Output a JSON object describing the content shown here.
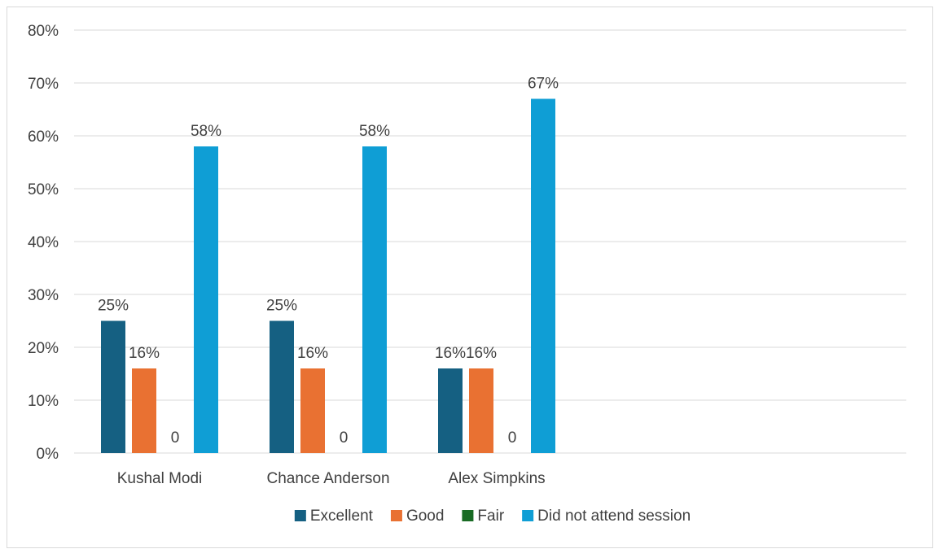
{
  "chart_data": {
    "type": "bar",
    "title": "",
    "xlabel": "",
    "ylabel": "",
    "categories": [
      "Kushal Modi",
      "Chance Anderson",
      "Alex Simpkins"
    ],
    "series": [
      {
        "name": "Excellent",
        "color": "#156082",
        "values": [
          25,
          25,
          16
        ],
        "labels": [
          "25%",
          "25%",
          "16%"
        ]
      },
      {
        "name": "Good",
        "color": "#e97132",
        "values": [
          16,
          16,
          16
        ],
        "labels": [
          "16%",
          "16%",
          "16%"
        ]
      },
      {
        "name": "Fair",
        "color": "#196b24",
        "values": [
          0,
          0,
          0
        ],
        "labels": [
          "0",
          "0",
          "0"
        ]
      },
      {
        "name": "Did not attend session",
        "color": "#0f9ed5",
        "values": [
          58,
          58,
          67
        ],
        "labels": [
          "58%",
          "58%",
          "67%"
        ]
      }
    ],
    "ylim": [
      0,
      80
    ],
    "yticks": [
      {
        "value": 0,
        "label": "0%"
      },
      {
        "value": 10,
        "label": "10%"
      },
      {
        "value": 20,
        "label": "20%"
      },
      {
        "value": 30,
        "label": "30%"
      },
      {
        "value": 40,
        "label": "40%"
      },
      {
        "value": 50,
        "label": "50%"
      },
      {
        "value": 60,
        "label": "60%"
      },
      {
        "value": 70,
        "label": "70%"
      },
      {
        "value": 80,
        "label": "80%"
      }
    ],
    "grid": true,
    "gridline_color": "#d9d9d9",
    "legend_position": "bottom"
  }
}
